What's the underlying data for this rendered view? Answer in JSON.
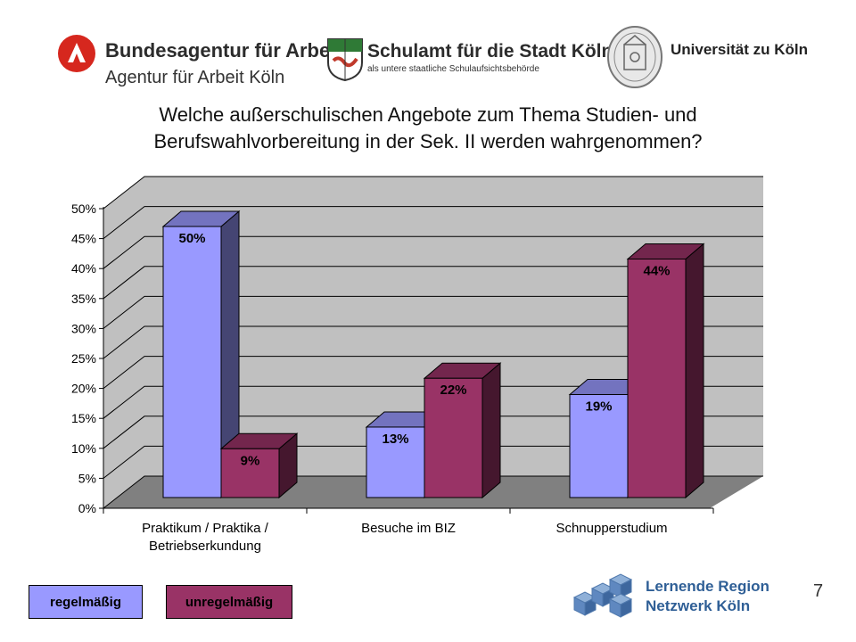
{
  "logos": {
    "ba_line1": "Bundesagentur für Arbeit",
    "ba_line2": "Agentur für Arbeit Köln",
    "schulamt_line1": "Schulamt für die Stadt Köln",
    "schulamt_line2": "als untere staatliche Schulaufsichtsbehörde",
    "uni": "Universität zu Köln",
    "lernende_line1": "Lernende Region",
    "lernende_line2": "Netzwerk Köln"
  },
  "title_line1": "Welche außerschulischen Angebote zum Thema Studien- und",
  "title_line2": "Berufswahlvorbereitung in der Sek. II werden wahrgenommen?",
  "page_number": "7",
  "colors": {
    "regelmaessig": "#9999ff",
    "unregelmaessig": "#993366",
    "wall": "#c0c0c0",
    "floor": "#808080"
  },
  "chart_data": {
    "type": "bar",
    "title": "Welche außerschulischen Angebote zum Thema Studien- und Berufswahlvorbereitung in der Sek. II werden wahrgenommen?",
    "categories": [
      [
        "Praktikum / Praktika /",
        "Betriebserkundung"
      ],
      [
        "Besuche im BIZ"
      ],
      [
        "Schnupperstudium"
      ]
    ],
    "series": [
      {
        "name": "regelmäßig",
        "values": [
          50,
          13,
          19
        ]
      },
      {
        "name": "unregelmäßig",
        "values": [
          9,
          22,
          44
        ]
      }
    ],
    "data_labels": [
      [
        "50%",
        "13%",
        "19%"
      ],
      [
        "9%",
        "22%",
        "44%"
      ]
    ],
    "ylim": [
      0,
      50
    ],
    "yticks": [
      "0%",
      "5%",
      "10%",
      "15%",
      "20%",
      "25%",
      "30%",
      "35%",
      "40%",
      "45%",
      "50%"
    ],
    "grid": true,
    "legend_position": "bottom-left"
  }
}
